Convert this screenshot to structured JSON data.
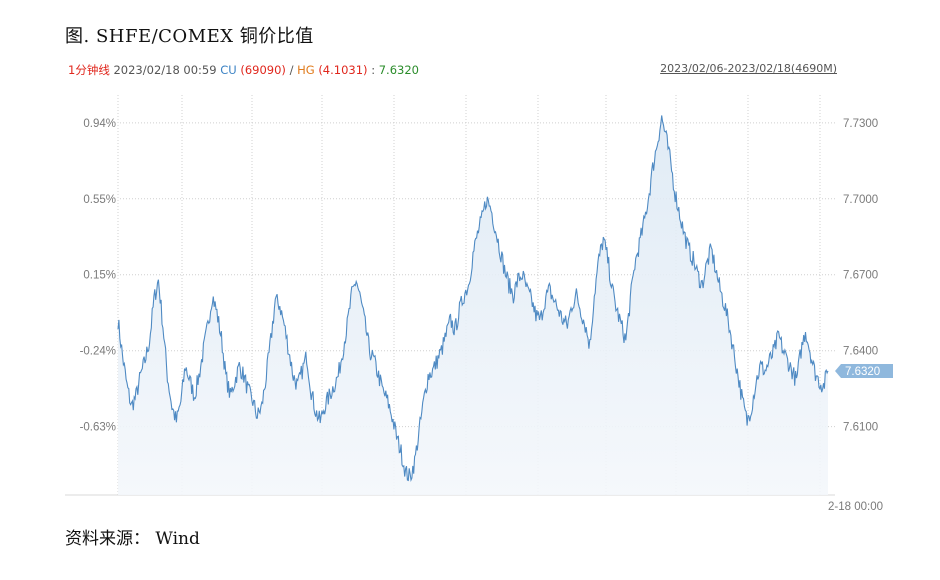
{
  "title": "图. SHFE/COMEX 铜价比值",
  "info": {
    "period": "1分钟线",
    "datetime": "2023/02/18 00:59",
    "cu_label": "CU",
    "cu_value": "(69090)",
    "sep": "/",
    "hg_label": "HG",
    "hg_value": "(4.1031)",
    "ratio_sep": ":",
    "ratio_value": "7.6320"
  },
  "range_label": "2023/02/06-2023/02/18(4690M)",
  "source": "资料来源： Wind",
  "colors": {
    "line": "#4f8ac3",
    "fill_top": "#dbe8f4",
    "grid": "#c8c8c8",
    "current_badge": "#8fb8dd"
  },
  "chart_data": {
    "type": "area",
    "title": "图. SHFE/COMEX 铜价比值",
    "ylim": [
      7.583,
      7.741
    ],
    "left_ticks": [
      "0.94%",
      "0.55%",
      "0.15%",
      "-0.24%",
      "-0.63%"
    ],
    "right_ticks": [
      "7.7300",
      "7.7000",
      "7.6700",
      "7.6400",
      "7.6100"
    ],
    "right_tick_values": [
      7.73,
      7.7,
      7.67,
      7.64,
      7.61
    ],
    "x_end_label": "2-18 00:00",
    "current_value": "7.6320",
    "grid": true,
    "series": [
      {
        "values": [
          7.652,
          7.638,
          7.626,
          7.618,
          7.622,
          7.63,
          7.636,
          7.644,
          7.66,
          7.668,
          7.65,
          7.63,
          7.618,
          7.612,
          7.62,
          7.634,
          7.628,
          7.622,
          7.63,
          7.64,
          7.65,
          7.662,
          7.655,
          7.645,
          7.63,
          7.622,
          7.628,
          7.634,
          7.63,
          7.624,
          7.62,
          7.614,
          7.618,
          7.63,
          7.644,
          7.66,
          7.658,
          7.65,
          7.64,
          7.63,
          7.626,
          7.632,
          7.638,
          7.624,
          7.616,
          7.612,
          7.618,
          7.622,
          7.626,
          7.63,
          7.64,
          7.65,
          7.662,
          7.668,
          7.66,
          7.65,
          7.64,
          7.636,
          7.63,
          7.624,
          7.62,
          7.614,
          7.606,
          7.6,
          7.592,
          7.59,
          7.596,
          7.608,
          7.62,
          7.63,
          7.632,
          7.636,
          7.64,
          7.646,
          7.652,
          7.648,
          7.656,
          7.662,
          7.666,
          7.678,
          7.686,
          7.692,
          7.7,
          7.696,
          7.688,
          7.68,
          7.672,
          7.666,
          7.662,
          7.668,
          7.67,
          7.664,
          7.66,
          7.654,
          7.652,
          7.66,
          7.664,
          7.66,
          7.656,
          7.652,
          7.65,
          7.658,
          7.662,
          7.656,
          7.65,
          7.642,
          7.662,
          7.676,
          7.684,
          7.676,
          7.664,
          7.656,
          7.65,
          7.644,
          7.66,
          7.674,
          7.682,
          7.69,
          7.7,
          7.712,
          7.722,
          7.732,
          7.724,
          7.714,
          7.702,
          7.694,
          7.686,
          7.68,
          7.676,
          7.67,
          7.666,
          7.674,
          7.68,
          7.672,
          7.664,
          7.658,
          7.65,
          7.64,
          7.63,
          7.62,
          7.612,
          7.618,
          7.628,
          7.634,
          7.632,
          7.636,
          7.64,
          7.646,
          7.64,
          7.636,
          7.632,
          7.628,
          7.64,
          7.648,
          7.64,
          7.632,
          7.628,
          7.626,
          7.632
        ]
      }
    ]
  }
}
